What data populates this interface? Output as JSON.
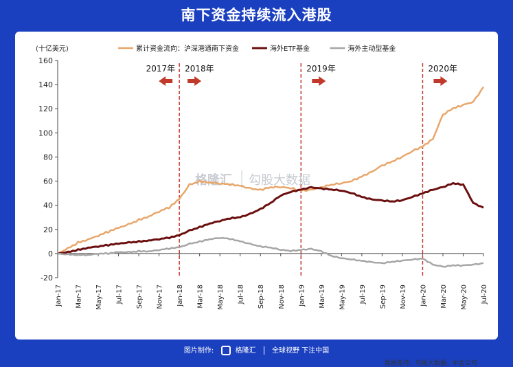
{
  "page_title": "南下资金持续流入港股",
  "source_note": "数据支持：勾股大数据、中金公司",
  "footer": {
    "made_by": "图片制作:",
    "brand": "格隆汇",
    "slogan": "全球视野 下注中国"
  },
  "watermark": {
    "left": "格隆汇",
    "right": "勾股大数据"
  },
  "colors": {
    "background": "#1a3fbf",
    "southbound": "#e8a66a",
    "etf": "#6b0f0f",
    "active": "#a6a6a6",
    "divider": "#c0392b"
  },
  "chart_data": {
    "type": "line",
    "unit_label": "(十亿美元)",
    "ylim": [
      -20,
      160
    ],
    "yticks": [
      -20,
      0,
      20,
      40,
      60,
      80,
      100,
      120,
      140,
      160
    ],
    "x_tick_labels": [
      "Jan-17",
      "Mar-17",
      "May-17",
      "Jul-17",
      "Sep-17",
      "Nov-17",
      "Jan-18",
      "Mar-18",
      "May-18",
      "Jul-18",
      "Sep-18",
      "Nov-18",
      "Jan-19",
      "Mar-19",
      "May-19",
      "Jul-19",
      "Sep-19",
      "Nov-19",
      "Jan-20",
      "Mar-20",
      "May-20",
      "Jul-20"
    ],
    "grid": false,
    "legend_position": "top",
    "year_markers": [
      {
        "month_index": 12,
        "labels": [
          "2017年",
          "2018年"
        ],
        "arrows": [
          "left",
          "right"
        ]
      },
      {
        "month_index": 24,
        "labels": [
          "2019年"
        ],
        "arrows": [
          "right"
        ]
      },
      {
        "month_index": 36,
        "labels": [
          "2020年"
        ],
        "arrows": [
          "right"
        ]
      }
    ],
    "series": [
      {
        "name": "累计资金流向：沪深港通南下资金",
        "color_key": "southbound",
        "values": [
          0,
          4,
          9,
          12,
          15,
          18,
          21,
          24,
          28,
          31,
          35,
          38,
          45,
          57,
          60,
          59,
          58,
          57,
          56,
          54,
          53,
          55,
          55,
          54,
          52,
          53,
          55,
          57,
          58,
          60,
          64,
          68,
          73,
          76,
          80,
          85,
          89,
          95,
          115,
          120,
          123,
          126,
          138
        ]
      },
      {
        "name": "海外ETF基金",
        "color_key": "etf",
        "values": [
          0,
          1,
          3,
          5,
          6,
          7,
          8,
          9,
          10,
          11,
          12,
          13,
          15,
          19,
          22,
          25,
          27,
          29,
          30,
          33,
          37,
          42,
          48,
          51,
          53,
          55,
          54,
          53,
          52,
          50,
          47,
          45,
          44,
          43,
          44,
          47,
          50,
          53,
          55,
          58,
          57,
          42,
          38
        ]
      },
      {
        "name": "海外主动型基金",
        "color_key": "active",
        "values": [
          0,
          -1,
          -1,
          -1,
          0,
          0,
          1,
          1,
          2,
          2,
          3,
          4,
          5,
          8,
          10,
          12,
          13,
          12,
          10,
          8,
          6,
          5,
          3,
          2,
          3,
          4,
          2,
          -2,
          -4,
          -5,
          -6,
          -7,
          -8,
          -7,
          -6,
          -5,
          -4,
          -9,
          -11,
          -10,
          -10,
          -9,
          -8
        ]
      }
    ]
  }
}
